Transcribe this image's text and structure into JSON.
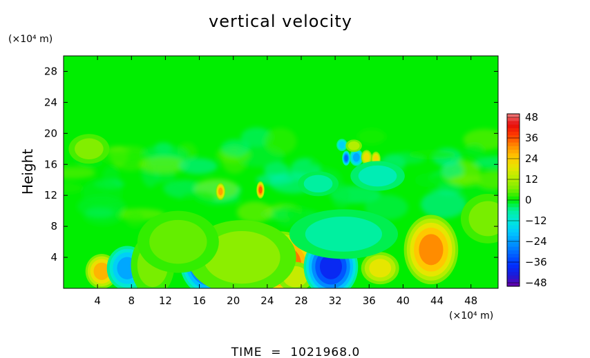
{
  "chart_data": {
    "type": "heatmap",
    "title": "vertical velocity",
    "ylabel": "Height",
    "x_unit_label": "(×10⁴ m)",
    "y_unit_label": "(×10⁴ m)",
    "xlim": [
      0,
      51.2
    ],
    "ylim": [
      0,
      30
    ],
    "x_ticks": [
      "4",
      "8",
      "12",
      "16",
      "20",
      "24",
      "28",
      "32",
      "36",
      "40",
      "44",
      "48"
    ],
    "y_ticks": [
      "4",
      "8",
      "12",
      "16",
      "20",
      "24",
      "28"
    ],
    "colorbar": {
      "ticks": [
        "48",
        "36",
        "24",
        "12",
        "0",
        "−12",
        "−24",
        "−36",
        "−48"
      ],
      "range": [
        -48,
        48
      ],
      "placement": "right"
    },
    "footer": "TIME  =  1021968.0",
    "features": [
      {
        "x": 4.5,
        "y": 2.2,
        "value": 26,
        "sx": 1.2,
        "sy": 1.4
      },
      {
        "x": 7.5,
        "y": 2.6,
        "value": -22,
        "sx": 1.5,
        "sy": 1.8
      },
      {
        "x": 10.5,
        "y": 3.0,
        "value": 6,
        "sx": 1.6,
        "sy": 2.5
      },
      {
        "x": 17.2,
        "y": 3.5,
        "value": -38,
        "sx": 2.2,
        "sy": 2.8
      },
      {
        "x": 25.5,
        "y": 3.2,
        "value": 38,
        "sx": 2.7,
        "sy": 2.6
      },
      {
        "x": 27.3,
        "y": 1.5,
        "value": 14,
        "sx": 1.3,
        "sy": 1.2
      },
      {
        "x": 31.5,
        "y": 2.8,
        "value": -38,
        "sx": 2.0,
        "sy": 2.5
      },
      {
        "x": 37.3,
        "y": 2.6,
        "value": 18,
        "sx": 1.4,
        "sy": 1.3
      },
      {
        "x": 43.3,
        "y": 5.0,
        "value": 30,
        "sx": 2.0,
        "sy": 2.8
      },
      {
        "x": 21.0,
        "y": 4.0,
        "value": 8,
        "sx": 4.0,
        "sy": 3.0
      },
      {
        "x": 13.5,
        "y": 6.0,
        "value": 5,
        "sx": 3.0,
        "sy": 2.5
      },
      {
        "x": 33.0,
        "y": 7.0,
        "value": -6,
        "sx": 4.0,
        "sy": 2.0
      },
      {
        "x": 50.0,
        "y": 9.0,
        "value": 6,
        "sx": 2.0,
        "sy": 2.0
      },
      {
        "x": 18.5,
        "y": 12.5,
        "value": 28,
        "sx": 0.35,
        "sy": 0.7
      },
      {
        "x": 23.2,
        "y": 12.7,
        "value": 34,
        "sx": 0.3,
        "sy": 0.7
      },
      {
        "x": 33.3,
        "y": 16.8,
        "value": -30,
        "sx": 0.3,
        "sy": 0.6
      },
      {
        "x": 34.5,
        "y": 16.9,
        "value": -22,
        "sx": 0.5,
        "sy": 0.7
      },
      {
        "x": 35.7,
        "y": 16.9,
        "value": 20,
        "sx": 0.4,
        "sy": 0.6
      },
      {
        "x": 36.8,
        "y": 16.7,
        "value": 22,
        "sx": 0.35,
        "sy": 0.6
      },
      {
        "x": 32.8,
        "y": 18.5,
        "value": -16,
        "sx": 0.4,
        "sy": 0.5
      },
      {
        "x": 34.2,
        "y": 18.4,
        "value": 12,
        "sx": 0.6,
        "sy": 0.5
      },
      {
        "x": 3.0,
        "y": 18.0,
        "value": 7,
        "sx": 1.5,
        "sy": 1.2
      },
      {
        "x": 30.0,
        "y": 13.5,
        "value": -6,
        "sx": 1.5,
        "sy": 1.0
      },
      {
        "x": 37.0,
        "y": 14.5,
        "value": -8,
        "sx": 2.0,
        "sy": 1.2
      }
    ]
  }
}
